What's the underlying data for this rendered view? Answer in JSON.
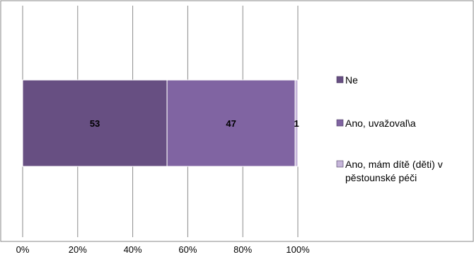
{
  "chart_data": {
    "type": "bar",
    "orientation": "horizontal",
    "stacked": "percent",
    "categories": [
      ""
    ],
    "series": [
      {
        "name": "Ne",
        "values": [
          53
        ],
        "color": "#674f82"
      },
      {
        "name": "Ano, uvažoval\\a",
        "values": [
          47
        ],
        "color": "#8064a2"
      },
      {
        "name": "Ano, mám dítě (děti) v pěstounské péči",
        "name_lines": [
          "Ano, mám dítě (děti) v",
          "pěstounské péči"
        ],
        "values": [
          1
        ],
        "color": "#c6b6da"
      }
    ],
    "xlim": [
      0,
      100
    ],
    "xticks": [
      "0%",
      "20%",
      "40%",
      "60%",
      "80%",
      "100%"
    ],
    "grid": {
      "vertical": true
    },
    "legend": "right",
    "title": "",
    "xlabel": "",
    "ylabel": ""
  }
}
